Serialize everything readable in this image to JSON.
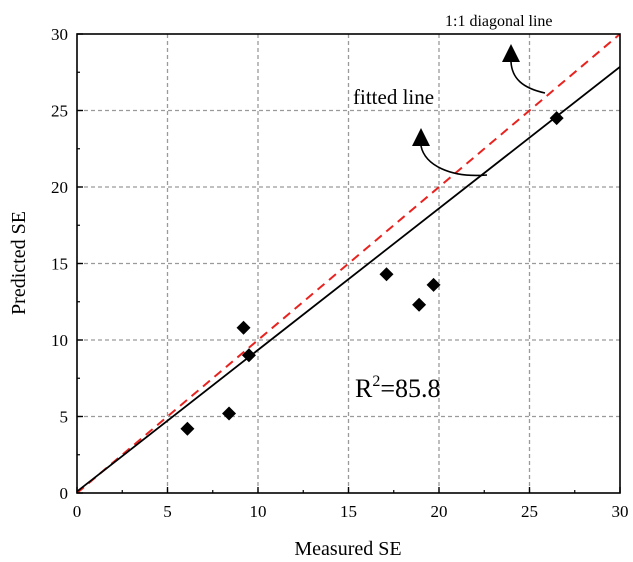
{
  "chart_data": {
    "type": "scatter",
    "xlabel": "Measured SE",
    "ylabel": "Predicted SE",
    "xlim": [
      0,
      30
    ],
    "ylim": [
      0,
      30
    ],
    "xticks": [
      0,
      5,
      10,
      15,
      20,
      25,
      30
    ],
    "yticks": [
      0,
      5,
      10,
      15,
      20,
      25,
      30
    ],
    "grid": true,
    "points": [
      {
        "x": 6.1,
        "y": 4.2
      },
      {
        "x": 8.4,
        "y": 5.2
      },
      {
        "x": 9.2,
        "y": 10.8
      },
      {
        "x": 9.5,
        "y": 9.0
      },
      {
        "x": 17.1,
        "y": 14.3
      },
      {
        "x": 18.9,
        "y": 12.3
      },
      {
        "x": 19.7,
        "y": 13.6
      },
      {
        "x": 26.5,
        "y": 24.5
      }
    ],
    "fitted_line": {
      "label": "fitted line",
      "intercept": 0.1,
      "slope": 0.925,
      "color": "#000000"
    },
    "diagonal_line": {
      "label": "1:1 diagonal line",
      "intercept": 0,
      "slope": 1,
      "color": "#e8231f"
    },
    "annotation": {
      "r2_prefix": "R",
      "r2_sup": "2",
      "r2_value": "=85.8"
    },
    "marker_color": "#000000",
    "grid_color": "#9a9a9a"
  }
}
